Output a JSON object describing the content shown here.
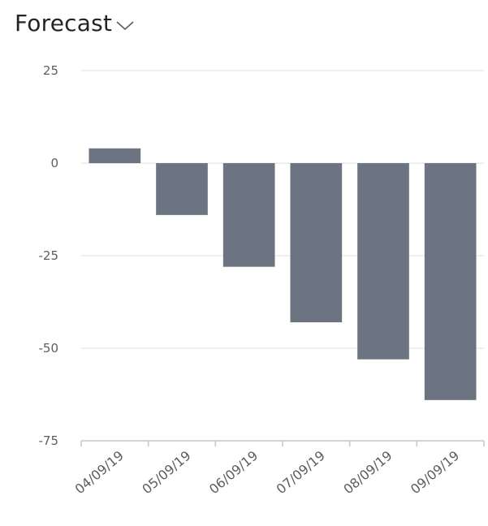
{
  "header": {
    "title": "Forecast",
    "dropdown_icon": "chevron-down-icon"
  },
  "chart_data": {
    "type": "bar",
    "title": "Forecast",
    "xlabel": "",
    "ylabel": "",
    "categories": [
      "04/09/19",
      "05/09/19",
      "06/09/19",
      "07/09/19",
      "08/09/19",
      "09/09/19"
    ],
    "values": [
      4,
      -14,
      -28,
      -43,
      -53,
      -64
    ],
    "ylim": [
      -75,
      25
    ],
    "yticks": [
      25,
      0,
      -25,
      -50,
      -75
    ],
    "grid": true,
    "legend": "none",
    "bar_color": "#6b7480",
    "grid_color": "#e8e8e8",
    "axis_color": "#c8c6c4"
  }
}
